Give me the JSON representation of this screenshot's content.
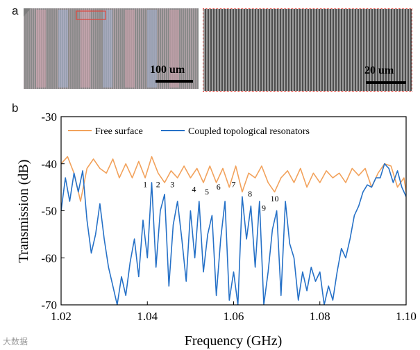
{
  "figure": {
    "panel_a_label": "a",
    "panel_b_label": "b",
    "sem_left": {
      "scale_text": "100 um"
    },
    "sem_right": {
      "scale_text": "20 um"
    },
    "watermark": "大数据"
  },
  "colors": {
    "free_surface": "#f2a25c",
    "coupled": "#2671c7",
    "sem_border": "#e0463c"
  },
  "chart_data": {
    "type": "line",
    "title": "",
    "xlabel": "Frequency (GHz)",
    "ylabel": "Transmission (dB)",
    "xlim": [
      1.02,
      1.1
    ],
    "ylim": [
      -70,
      -30
    ],
    "xticks": [
      1.02,
      1.04,
      1.06,
      1.08,
      1.1
    ],
    "xtick_labels": [
      "1.02",
      "1.04",
      "1.06",
      "1.08",
      "1.10"
    ],
    "yticks": [
      -70,
      -60,
      -50,
      -40,
      -30
    ],
    "ytick_labels": [
      "-70",
      "-60",
      "-50",
      "-40",
      "-30"
    ],
    "legend": {
      "placement": "top-left",
      "entries": [
        "Free surface",
        "Coupled topological resonators"
      ]
    },
    "series": [
      {
        "name": "Free surface",
        "color": "#f2a25c",
        "x": [
          1.02,
          1.0215,
          1.023,
          1.0245,
          1.026,
          1.0275,
          1.029,
          1.0305,
          1.032,
          1.0335,
          1.035,
          1.0365,
          1.038,
          1.0395,
          1.041,
          1.0425,
          1.044,
          1.0455,
          1.047,
          1.0485,
          1.05,
          1.0515,
          1.053,
          1.0545,
          1.056,
          1.0575,
          1.059,
          1.0605,
          1.062,
          1.0635,
          1.065,
          1.0665,
          1.068,
          1.0695,
          1.071,
          1.0725,
          1.074,
          1.0755,
          1.077,
          1.0785,
          1.08,
          1.0815,
          1.083,
          1.0845,
          1.086,
          1.0875,
          1.089,
          1.0905,
          1.092,
          1.0935,
          1.095,
          1.0965,
          1.098,
          1.0995,
          1.1
        ],
        "y": [
          -40,
          -38.5,
          -42,
          -48,
          -41,
          -39,
          -41,
          -42,
          -39,
          -43,
          -40,
          -43,
          -39.5,
          -43,
          -38.5,
          -42,
          -44,
          -41.5,
          -43,
          -40.5,
          -43,
          -41,
          -44,
          -40.5,
          -44,
          -41,
          -45,
          -40.5,
          -46,
          -42,
          -43,
          -40.5,
          -44,
          -46,
          -43,
          -41.5,
          -44,
          -41,
          -45,
          -42,
          -44,
          -41.5,
          -43,
          -42,
          -44,
          -41,
          -42.5,
          -41,
          -45,
          -42,
          -40,
          -40.5,
          -45,
          -43,
          -46
        ]
      },
      {
        "name": "Coupled topological resonators",
        "color": "#2671c7",
        "x": [
          1.02,
          1.021,
          1.022,
          1.023,
          1.024,
          1.025,
          1.026,
          1.027,
          1.028,
          1.029,
          1.03,
          1.031,
          1.032,
          1.033,
          1.034,
          1.035,
          1.036,
          1.037,
          1.038,
          1.039,
          1.04,
          1.041,
          1.042,
          1.043,
          1.044,
          1.045,
          1.046,
          1.047,
          1.048,
          1.049,
          1.05,
          1.051,
          1.052,
          1.053,
          1.054,
          1.055,
          1.056,
          1.057,
          1.058,
          1.059,
          1.06,
          1.061,
          1.062,
          1.063,
          1.064,
          1.065,
          1.066,
          1.067,
          1.068,
          1.069,
          1.07,
          1.071,
          1.072,
          1.073,
          1.074,
          1.075,
          1.076,
          1.077,
          1.078,
          1.079,
          1.08,
          1.081,
          1.082,
          1.083,
          1.084,
          1.085,
          1.086,
          1.087,
          1.088,
          1.089,
          1.09,
          1.091,
          1.092,
          1.093,
          1.094,
          1.095,
          1.096,
          1.097,
          1.098,
          1.099,
          1.1
        ],
        "y": [
          -50,
          -43,
          -48,
          -42,
          -46,
          -41.5,
          -52,
          -59,
          -55,
          -48.5,
          -56,
          -62,
          -66,
          -70,
          -64,
          -68,
          -61,
          -56,
          -64,
          -52,
          -60,
          -44,
          -62,
          -50,
          -46.5,
          -66,
          -53,
          -48,
          -56,
          -65,
          -50,
          -60,
          -48,
          -63,
          -55,
          -51,
          -68,
          -56,
          -48,
          -69,
          -63,
          -70,
          -47,
          -56,
          -49,
          -62,
          -48,
          -70,
          -63,
          -54,
          -50,
          -68,
          -48,
          -57,
          -60,
          -69,
          -63,
          -67,
          -62,
          -65,
          -63,
          -70,
          -66,
          -69,
          -63,
          -58,
          -60,
          -56,
          -51,
          -49,
          -46,
          -44.5,
          -45,
          -43,
          -43,
          -40,
          -41,
          -44,
          -41.5,
          -45,
          -47
        ]
      }
    ],
    "annotations": [
      {
        "text": "1",
        "x": 1.0395,
        "y": -45
      },
      {
        "text": "2",
        "x": 1.0425,
        "y": -45
      },
      {
        "text": "3",
        "x": 1.0458,
        "y": -45
      },
      {
        "text": "4",
        "x": 1.0508,
        "y": -46
      },
      {
        "text": "5",
        "x": 1.0538,
        "y": -46.5
      },
      {
        "text": "6",
        "x": 1.0565,
        "y": -45.5
      },
      {
        "text": "7",
        "x": 1.06,
        "y": -45
      },
      {
        "text": "8",
        "x": 1.0638,
        "y": -47
      },
      {
        "text": "9",
        "x": 1.067,
        "y": -50
      },
      {
        "text": "10",
        "x": 1.0695,
        "y": -48
      }
    ]
  }
}
